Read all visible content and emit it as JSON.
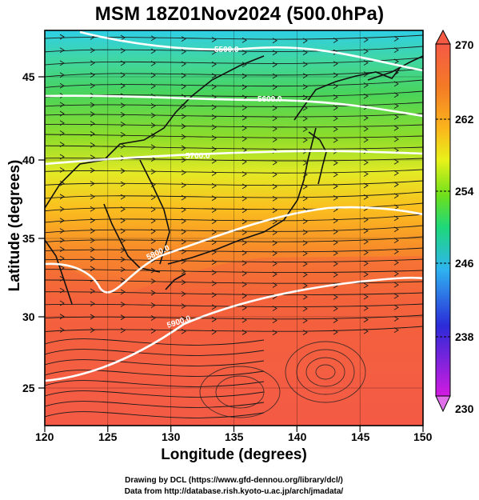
{
  "title": "MSM 18Z01Nov2024 (500.0hPa)",
  "x_axis": {
    "label": "Longitude (degrees)",
    "ticks": [
      "120",
      "125",
      "130",
      "135",
      "140",
      "145",
      "150"
    ],
    "range": [
      120,
      150
    ]
  },
  "y_axis": {
    "label": "Latitude  (degrees)",
    "ticks": [
      "25",
      "30",
      "35",
      "40",
      "45"
    ],
    "range": [
      22.4,
      47.6
    ]
  },
  "colorbar": {
    "ticks": [
      "270",
      "262",
      "254",
      "246",
      "238",
      "230"
    ],
    "range": [
      230,
      270
    ],
    "colors": [
      "#d21be0",
      "#2b2bd8",
      "#2fb4f0",
      "#1ed87a",
      "#6ee01c",
      "#e8f21a",
      "#fbb51c",
      "#f47a26",
      "#f55a45"
    ]
  },
  "contour_labels": [
    "5500.0",
    "5600.0",
    "5700.0",
    "5800.0",
    "5900.0"
  ],
  "credits": {
    "line1": "Drawing by DCL (https://www.gfd-dennou.org/library/dcl/)",
    "line2": "Data from http://database.rish.kyoto-u.ac.jp/arch/jmadata/"
  }
}
